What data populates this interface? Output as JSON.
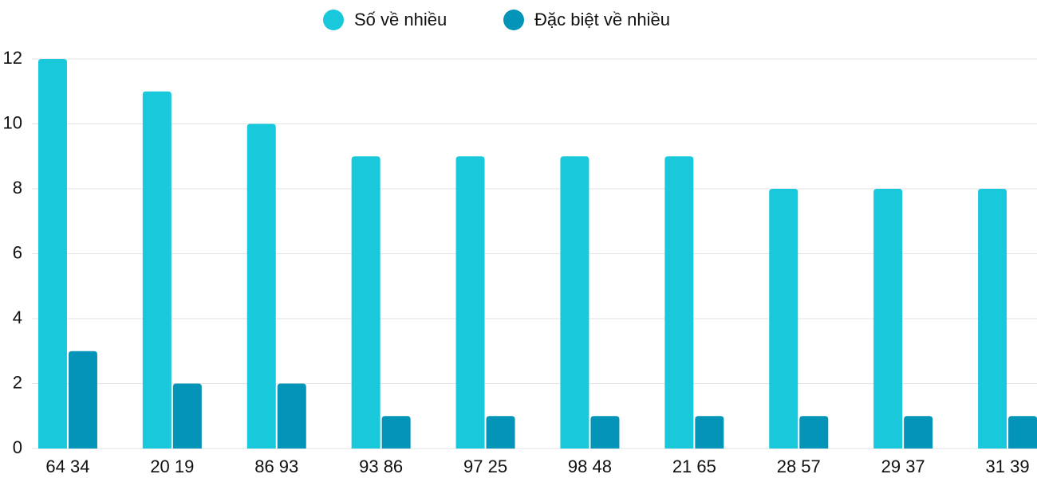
{
  "chart_data": {
    "type": "bar",
    "categories": [
      "64 34",
      "20 19",
      "86 93",
      "93 86",
      "97 25",
      "98 48",
      "21 65",
      "28 57",
      "29 37",
      "31 39"
    ],
    "series": [
      {
        "name": "Số về nhiều",
        "color": "#1ac8db",
        "values": [
          12,
          11,
          10,
          9,
          9,
          9,
          9,
          8,
          8,
          8
        ]
      },
      {
        "name": "Đặc biệt về nhiều",
        "color": "#0494b8",
        "values": [
          3,
          2,
          2,
          1,
          1,
          1,
          1,
          1,
          1,
          1
        ]
      }
    ],
    "ylim": [
      0,
      12
    ],
    "yticks": [
      0,
      2,
      4,
      6,
      8,
      10,
      12
    ],
    "grid": true,
    "legend": "top"
  }
}
